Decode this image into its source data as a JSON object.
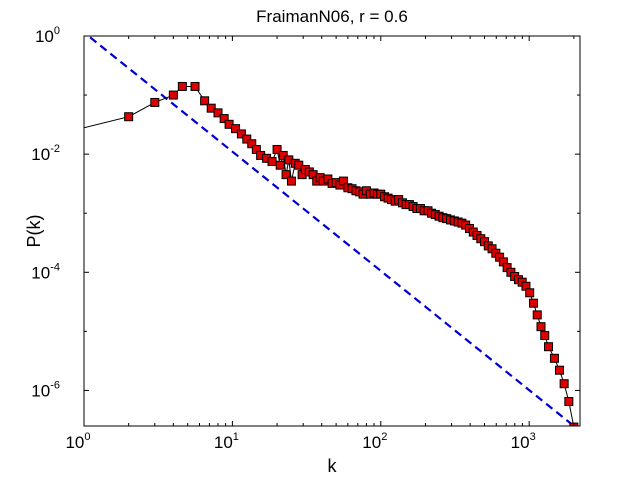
{
  "chart_data": {
    "type": "line",
    "title": "FraimanN06, r = 0.6",
    "xlabel": "k",
    "ylabel": "P(k)",
    "xscale": "log",
    "yscale": "log",
    "xlim": [
      1,
      2200
    ],
    "ylim": [
      2.5e-07,
      1
    ],
    "grid": false,
    "legend": "none",
    "x_ticks": [
      {
        "base": "10",
        "exp": "0",
        "value": 1
      },
      {
        "base": "10",
        "exp": "1",
        "value": 10
      },
      {
        "base": "10",
        "exp": "2",
        "value": 100
      },
      {
        "base": "10",
        "exp": "3",
        "value": 1000
      }
    ],
    "y_ticks": [
      {
        "base": "10",
        "exp": "0",
        "value": 1
      },
      {
        "base": "10",
        "exp": "-2",
        "value": 0.01
      },
      {
        "base": "10",
        "exp": "-4",
        "value": 0.0001
      },
      {
        "base": "10",
        "exp": "-6",
        "value": 1e-06
      }
    ],
    "series": [
      {
        "style": "black line with red square markers",
        "color": "#000000",
        "marker_color": "#dd0000",
        "points": [
          [
            1,
            0.028
          ],
          [
            2,
            0.043
          ],
          [
            3,
            0.075
          ],
          [
            4,
            0.1
          ],
          [
            4.6,
            0.14
          ],
          [
            5.6,
            0.14
          ],
          [
            6.5,
            0.08
          ],
          [
            7.2,
            0.06
          ],
          [
            8,
            0.05
          ],
          [
            8.8,
            0.04
          ],
          [
            9.5,
            0.032
          ],
          [
            10.5,
            0.027
          ],
          [
            11.5,
            0.022
          ],
          [
            12.5,
            0.018
          ],
          [
            13.5,
            0.015
          ],
          [
            14.5,
            0.012
          ],
          [
            15.5,
            0.0095
          ],
          [
            17,
            0.0085
          ],
          [
            18.5,
            0.0075
          ],
          [
            20,
            0.012
          ],
          [
            21,
            0.0065
          ],
          [
            22,
            0.0095
          ],
          [
            23,
            0.0045
          ],
          [
            24,
            0.008
          ],
          [
            25,
            0.0035
          ],
          [
            26.5,
            0.007
          ],
          [
            28,
            0.0065
          ],
          [
            29.5,
            0.0045
          ],
          [
            31,
            0.0055
          ],
          [
            33,
            0.005
          ],
          [
            35,
            0.0045
          ],
          [
            37,
            0.0035
          ],
          [
            39,
            0.004
          ],
          [
            41,
            0.0035
          ],
          [
            44,
            0.0038
          ],
          [
            47,
            0.0032
          ],
          [
            50,
            0.0033
          ],
          [
            53,
            0.003
          ],
          [
            56,
            0.0035
          ],
          [
            60,
            0.0027
          ],
          [
            64,
            0.0026
          ],
          [
            68,
            0.0024
          ],
          [
            72,
            0.0023
          ],
          [
            76,
            0.0021
          ],
          [
            80,
            0.0024
          ],
          [
            85,
            0.0021
          ],
          [
            90,
            0.0022
          ],
          [
            95,
            0.0021
          ],
          [
            100,
            0.0021
          ],
          [
            106,
            0.0019
          ],
          [
            112,
            0.0018
          ],
          [
            118,
            0.0017
          ],
          [
            125,
            0.0016
          ],
          [
            132,
            0.0017
          ],
          [
            140,
            0.0015
          ],
          [
            148,
            0.0014
          ],
          [
            156,
            0.0014
          ],
          [
            165,
            0.0013
          ],
          [
            175,
            0.0012
          ],
          [
            185,
            0.0012
          ],
          [
            196,
            0.0011
          ],
          [
            208,
            0.0011
          ],
          [
            220,
            0.001
          ],
          [
            233,
            0.00095
          ],
          [
            247,
            0.00089
          ],
          [
            262,
            0.00084
          ],
          [
            278,
            0.00081
          ],
          [
            295,
            0.00077
          ],
          [
            313,
            0.00074
          ],
          [
            332,
            0.00071
          ],
          [
            352,
            0.00068
          ],
          [
            373,
            0.00063
          ],
          [
            396,
            0.00055
          ],
          [
            420,
            0.00048
          ],
          [
            445,
            0.00042
          ],
          [
            472,
            0.00037
          ],
          [
            500,
            0.00033
          ],
          [
            530,
            0.00028
          ],
          [
            562,
            0.00025
          ],
          [
            596,
            0.00021
          ],
          [
            632,
            0.00018
          ],
          [
            670,
            0.00015
          ],
          [
            710,
            0.00012
          ],
          [
            753,
            0.0001
          ],
          [
            798,
            8.5e-05
          ],
          [
            846,
            7.5e-05
          ],
          [
            897,
            6.8e-05
          ],
          [
            951,
            5.8e-05
          ],
          [
            1008,
            4.5e-05
          ],
          [
            1069,
            3e-05
          ],
          [
            1133,
            1.9e-05
          ],
          [
            1201,
            1.2e-05
          ],
          [
            1273,
            8.5e-06
          ],
          [
            1350,
            5.5e-06
          ],
          [
            1480,
            3.5e-06
          ],
          [
            1600,
            2.2e-06
          ],
          [
            1720,
            1.3e-06
          ],
          [
            1850,
            6.5e-07
          ],
          [
            2000,
            2.4e-07
          ]
        ]
      },
      {
        "style": "blue dashed reference line",
        "color": "#0000cc",
        "points": [
          [
            1.1,
            0.95
          ],
          [
            2000,
            2.5e-07
          ]
        ]
      }
    ]
  }
}
